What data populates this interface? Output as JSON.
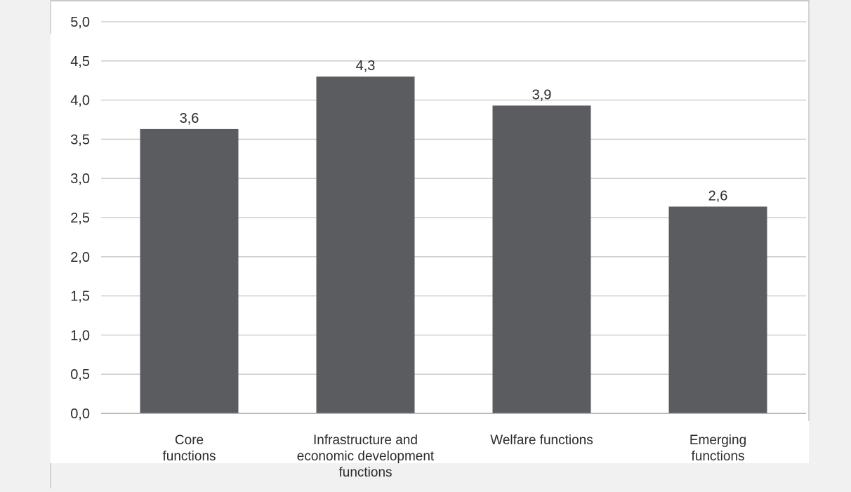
{
  "chart_data": {
    "type": "bar",
    "categories": [
      [
        "Core",
        "functions"
      ],
      [
        "Infrastructure and",
        "economic development",
        "functions"
      ],
      [
        "Welfare functions"
      ],
      [
        "Emerging",
        "functions"
      ]
    ],
    "values": [
      3.6,
      4.3,
      3.9,
      2.6
    ],
    "value_display": [
      3.63,
      4.3,
      3.93,
      2.64
    ],
    "data_labels": [
      "3,6",
      "4,3",
      "3,9",
      "2,6"
    ],
    "y_ticks": [
      "0,0",
      "0,5",
      "1,0",
      "1,5",
      "2,0",
      "2,5",
      "3,0",
      "3,5",
      "4,0",
      "4,5",
      "5,0"
    ],
    "ylim": [
      0,
      5
    ],
    "grid": true,
    "bar_color": "#5b5c60",
    "grid_color": "#c8c8ca",
    "plot_background": "#ffffff",
    "page_background": "#f1f1f2"
  }
}
